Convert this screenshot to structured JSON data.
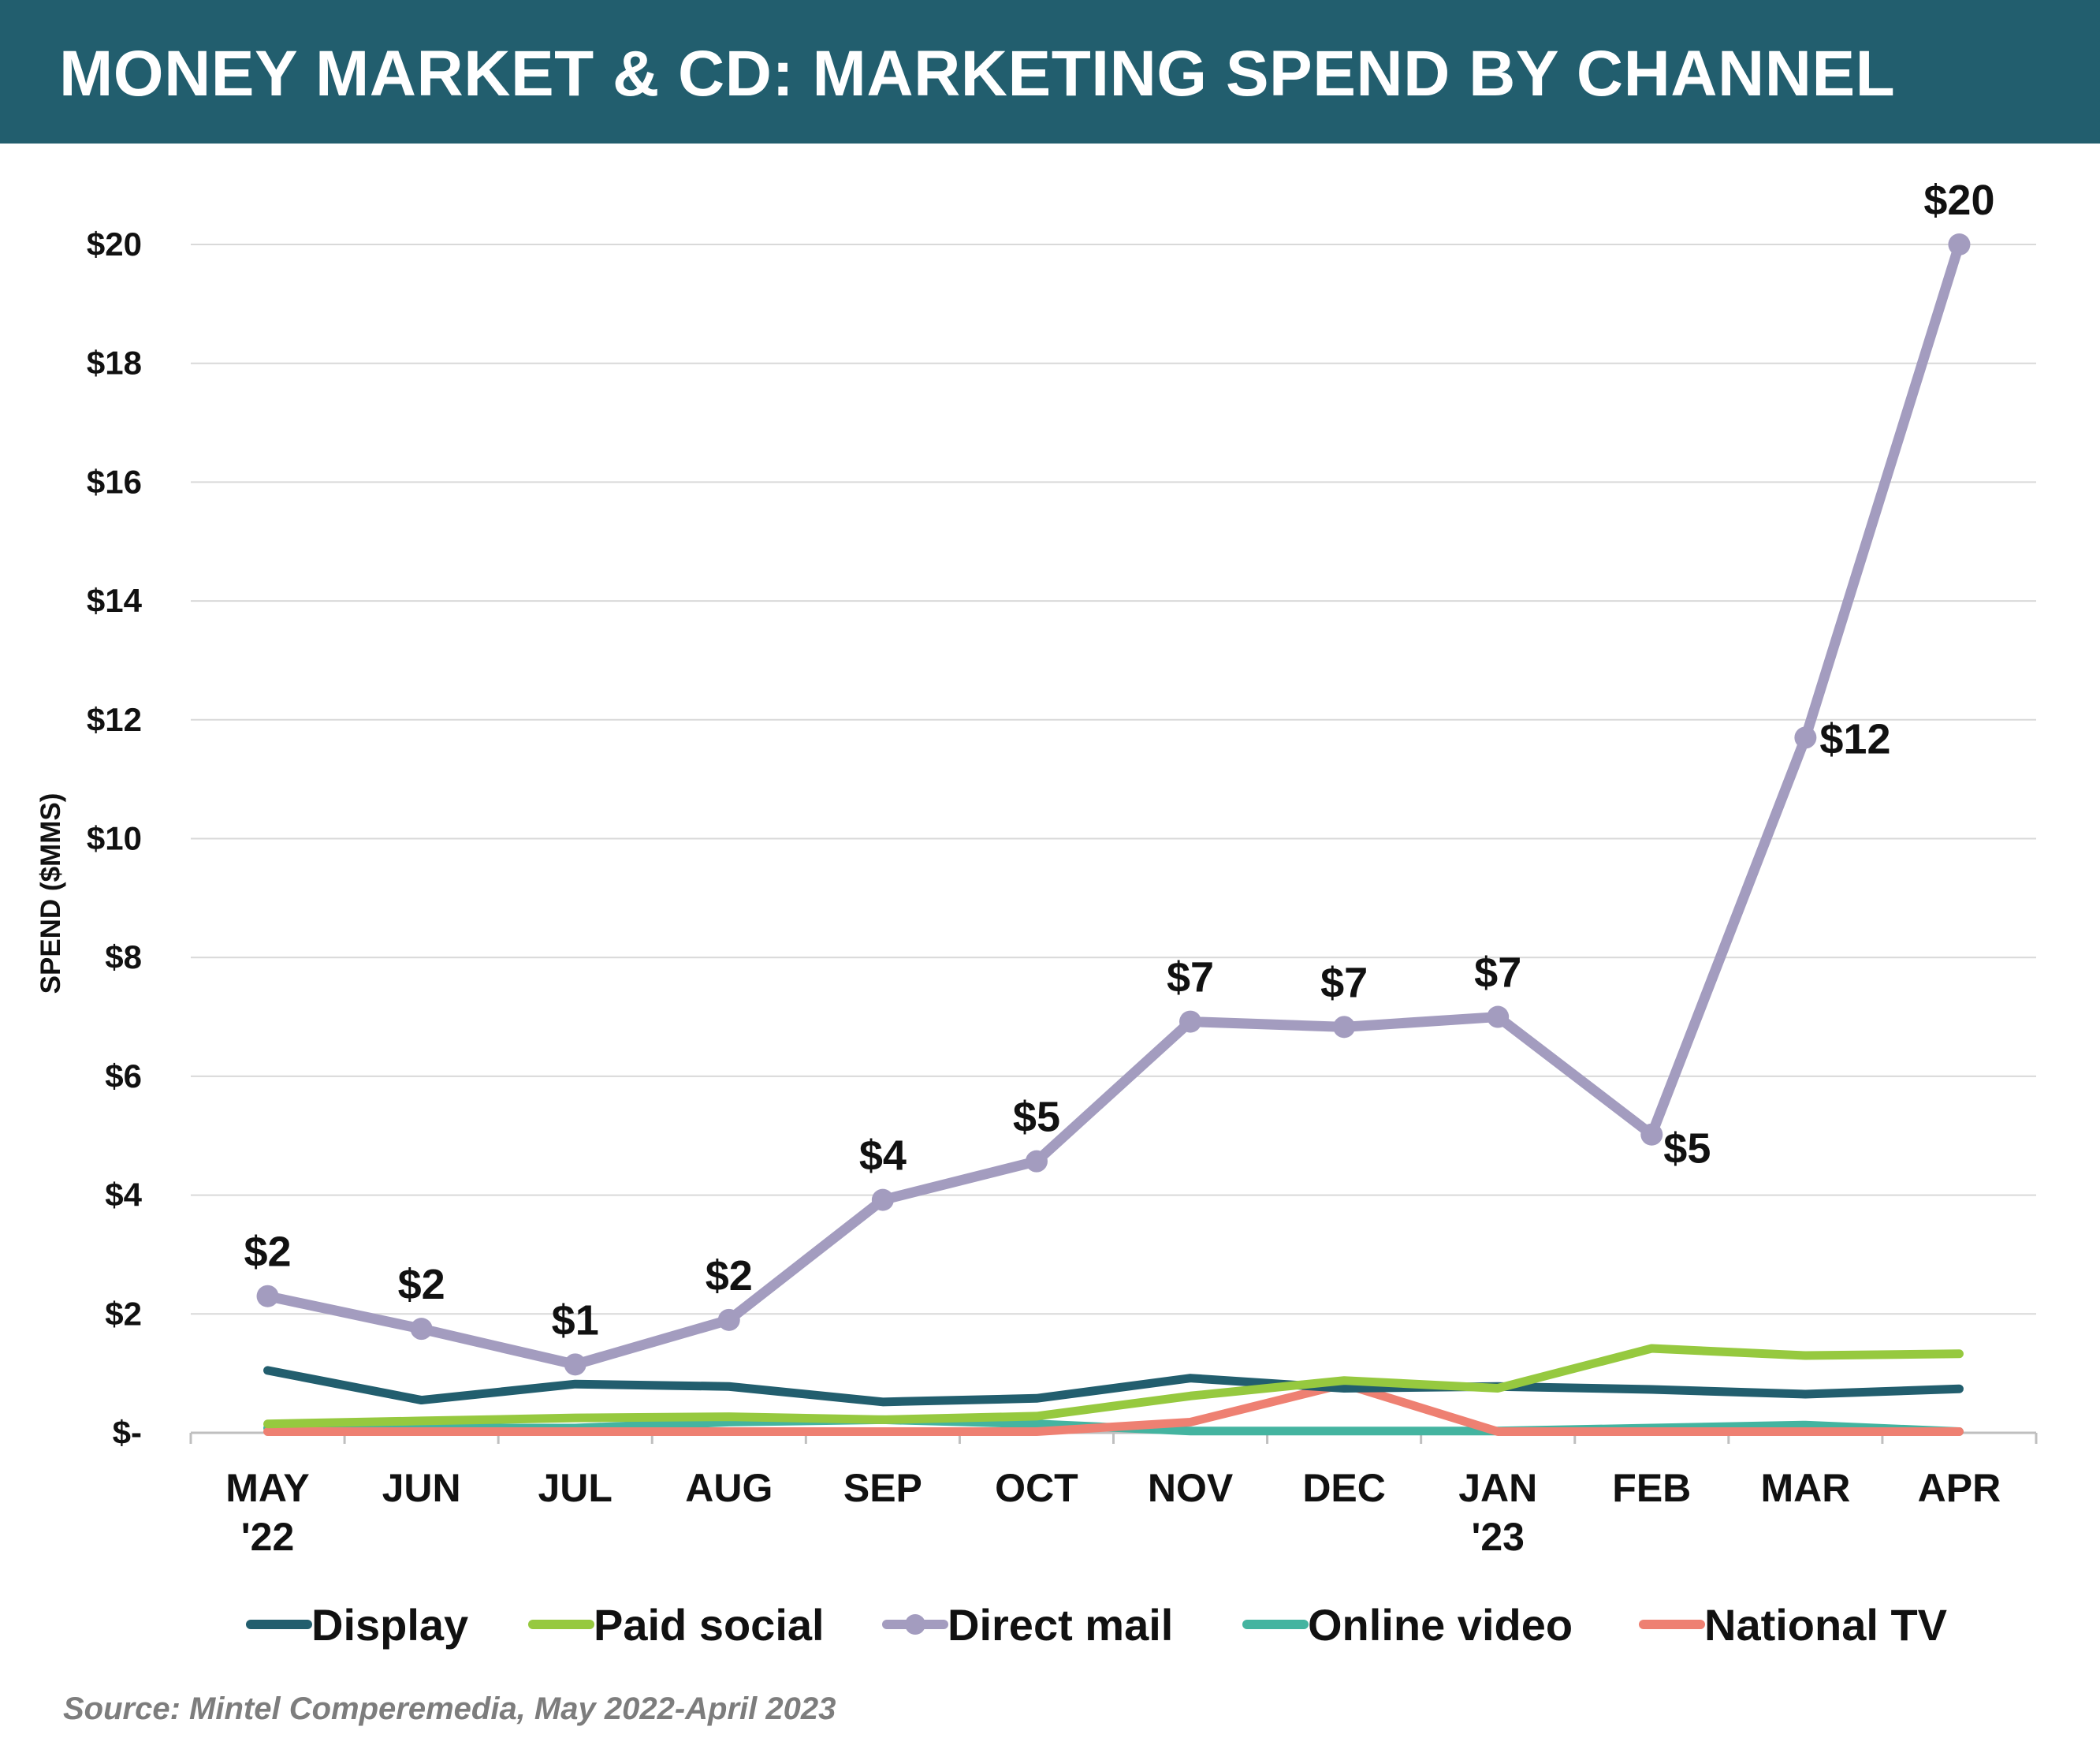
{
  "title": "MONEY MARKET & CD: MARKETING SPEND BY CHANNEL",
  "source": "Source: Mintel Comperemedia, May 2022-April 2023",
  "chart_data": {
    "type": "line",
    "ylabel": "SPEND ($MMS)",
    "ylim": [
      0,
      20
    ],
    "yticks": [
      0,
      2,
      4,
      6,
      8,
      10,
      12,
      14,
      16,
      18,
      20
    ],
    "ytick_labels": [
      "$-",
      "$2",
      "$4",
      "$6",
      "$8",
      "$10",
      "$12",
      "$14",
      "$16",
      "$18",
      "$20"
    ],
    "categories": [
      [
        "MAY",
        "'22"
      ],
      [
        "JUN"
      ],
      [
        "JUL"
      ],
      [
        "AUG"
      ],
      [
        "SEP"
      ],
      [
        "OCT"
      ],
      [
        "NOV"
      ],
      [
        "DEC"
      ],
      [
        "JAN",
        "'23"
      ],
      [
        "FEB"
      ],
      [
        "MAR"
      ],
      [
        "APR"
      ]
    ],
    "grid": true,
    "legend_position": "bottom",
    "series": [
      {
        "name": "Display",
        "color": "#225e6e",
        "markers": false,
        "values": [
          1.05,
          0.55,
          0.82,
          0.78,
          0.52,
          0.58,
          0.92,
          0.75,
          0.78,
          0.73,
          0.65,
          0.74
        ]
      },
      {
        "name": "Paid social",
        "color": "#96c93f",
        "markers": false,
        "values": [
          0.15,
          0.2,
          0.25,
          0.27,
          0.22,
          0.28,
          0.62,
          0.88,
          0.75,
          1.42,
          1.3,
          1.33
        ]
      },
      {
        "name": "Direct mail",
        "color": "#a39cbf",
        "markers": true,
        "values": [
          2.3,
          1.75,
          1.15,
          1.9,
          3.92,
          4.57,
          6.92,
          6.83,
          7.0,
          5.02,
          11.7,
          20.0
        ],
        "data_labels": [
          "$2",
          "$2",
          "$1",
          "$2",
          "$4",
          "$5",
          "$7",
          "$7",
          "$7",
          "$5",
          "$12",
          "$20"
        ],
        "label_side": [
          "above",
          "above",
          "above",
          "above",
          "above",
          "above",
          "above",
          "above",
          "above",
          "below-right",
          "right",
          "above"
        ]
      },
      {
        "name": "Online video",
        "color": "#44b4a0",
        "markers": false,
        "values": [
          0.08,
          0.08,
          0.08,
          0.18,
          0.22,
          0.15,
          0.03,
          0.03,
          0.03,
          0.08,
          0.13,
          0.02
        ]
      },
      {
        "name": "National TV",
        "color": "#ee8072",
        "markers": false,
        "values": [
          0.02,
          0.02,
          0.02,
          0.02,
          0.02,
          0.02,
          0.18,
          0.82,
          0.02,
          0.02,
          0.02,
          0.02
        ]
      }
    ]
  }
}
